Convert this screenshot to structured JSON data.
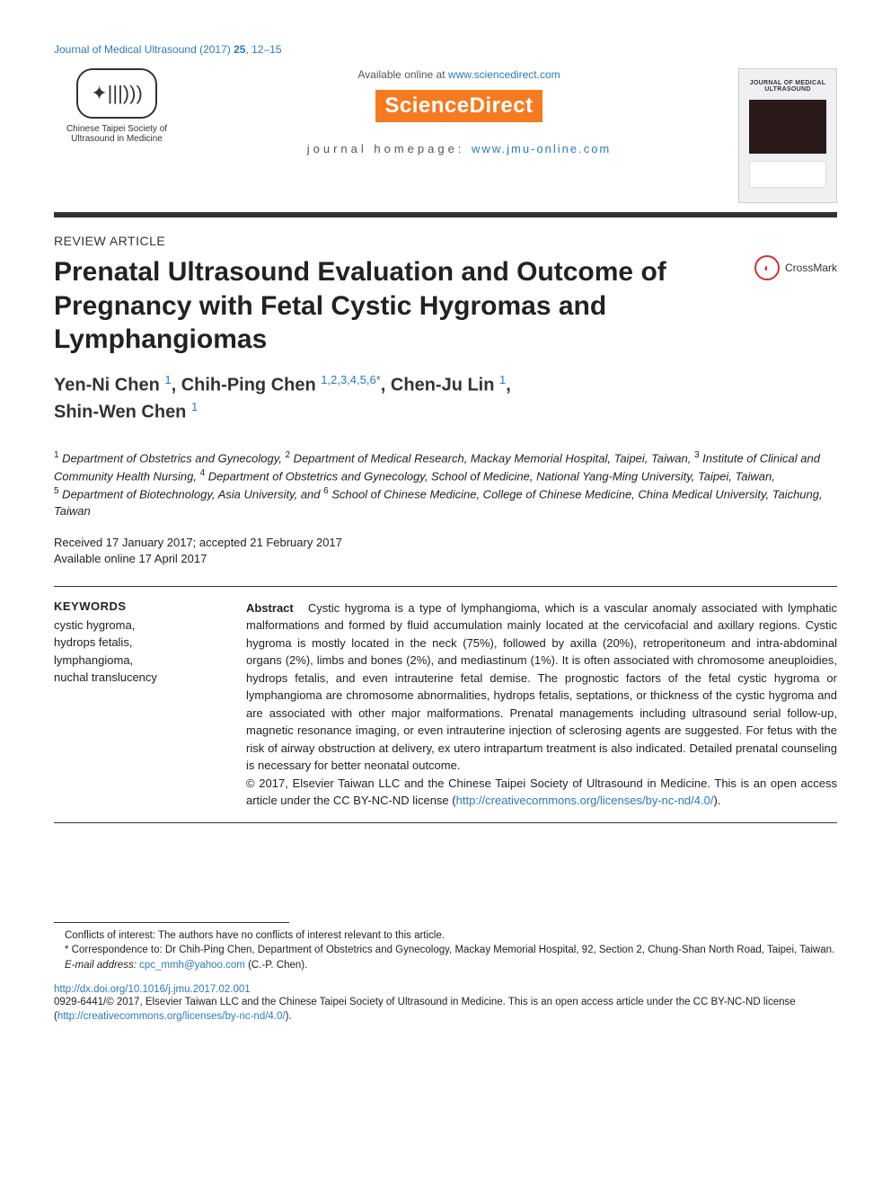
{
  "header": {
    "citation_prefix": "Journal of Medical Ultrasound (2017) ",
    "volume": "25",
    "pages": ", 12–15"
  },
  "top": {
    "society_name": "Chinese Taipei Society of Ultrasound in Medicine",
    "available_text": "Available online at ",
    "available_url": "www.sciencedirect.com",
    "sd_label": "ScienceDirect",
    "homepage_label": "journal homepage: ",
    "homepage_url": "www.jmu-online.com",
    "cover_journal_title": "JOURNAL OF MEDICAL ULTRASOUND"
  },
  "article": {
    "type": "REVIEW ARTICLE",
    "title": "Prenatal Ultrasound Evaluation and Outcome of Pregnancy with Fetal Cystic Hygromas and Lymphangiomas",
    "crossmark_label": "CrossMark"
  },
  "authors": {
    "a1": {
      "name": "Yen-Ni Chen",
      "sup": "1"
    },
    "a2": {
      "name": "Chih-Ping Chen",
      "sup": "1,2,3,4,5,6",
      "corr": "*"
    },
    "a3": {
      "name": "Chen-Ju Lin",
      "sup": "1"
    },
    "a4": {
      "name": "Shin-Wen Chen",
      "sup": "1"
    }
  },
  "affiliations": {
    "text_parts": {
      "p1_sup": "1",
      "p1": " Department of Obstetrics and Gynecology, ",
      "p2_sup": "2",
      "p2": " Department of Medical Research, Mackay Memorial Hospital, Taipei, Taiwan, ",
      "p3_sup": "3",
      "p3": " Institute of Clinical and Community Health Nursing, ",
      "p4_sup": "4",
      "p4": " Department of Obstetrics and Gynecology, School of Medicine, National Yang-Ming University, Taipei, Taiwan, ",
      "p5_sup": "5",
      "p5": " Department of Biotechnology, Asia University, and ",
      "p6_sup": "6",
      "p6": " School of Chinese Medicine, College of Chinese Medicine, China Medical University, Taichung, Taiwan"
    }
  },
  "dates": {
    "received_accepted": "Received 17 January 2017; accepted 21 February 2017",
    "online": "Available online 17 April 2017"
  },
  "keywords": {
    "heading": "KEYWORDS",
    "k1": "cystic hygroma,",
    "k2": "hydrops fetalis,",
    "k3": "lymphangioma,",
    "k4": "nuchal translucency"
  },
  "abstract": {
    "heading": "Abstract",
    "body": "Cystic hygroma is a type of lymphangioma, which is a vascular anomaly associated with lymphatic malformations and formed by fluid accumulation mainly located at the cervicofacial and axillary regions. Cystic hygroma is mostly located in the neck (75%), followed by axilla (20%), retroperitoneum and intra-abdominal organs (2%), limbs and bones (2%), and mediastinum (1%). It is often associated with chromosome aneuploidies, hydrops fetalis, and even intrauterine fetal demise. The prognostic factors of the fetal cystic hygroma or lymphangioma are chromosome abnormalities, hydrops fetalis, septations, or thickness of the cystic hygroma and are associated with other major malformations. Prenatal managements including ultrasound serial follow-up, magnetic resonance imaging, or even intrauterine injection of sclerosing agents are suggested. For fetus with the risk of airway obstruction at delivery, ex utero intrapartum treatment is also indicated. Detailed prenatal counseling is necessary for better neonatal outcome.",
    "copyright": "© 2017, Elsevier Taiwan LLC and the Chinese Taipei Society of Ultrasound in Medicine. This is an open access article under the CC BY-NC-ND license (",
    "license_url": "http://creativecommons.org/licenses/by-nc-nd/4.0/",
    "copyright_end": ")."
  },
  "footnotes": {
    "conflicts": "Conflicts of interest: The authors have no conflicts of interest relevant to this article.",
    "corr_label": "* Correspondence to: Dr Chih-Ping Chen, Department of Obstetrics and Gynecology, Mackay Memorial Hospital, 92, Section 2, Chung-Shan North Road, Taipei, Taiwan.",
    "email_label": "E-mail address: ",
    "email": "cpc_mmh@yahoo.com",
    "email_suffix": " (C.-P. Chen)."
  },
  "footer": {
    "doi": "http://dx.doi.org/10.1016/j.jmu.2017.02.001",
    "issn_line": "0929-6441/© 2017, Elsevier Taiwan LLC and the Chinese Taipei Society of Ultrasound in Medicine. This is an open access article under the CC BY-NC-ND license (",
    "license_url": "http://creativecommons.org/licenses/by-nc-nd/4.0/",
    "issn_end": ")."
  },
  "colors": {
    "link": "#2b7bb9",
    "sd_orange": "#f47b20",
    "text": "#222222",
    "rule": "#333333"
  }
}
